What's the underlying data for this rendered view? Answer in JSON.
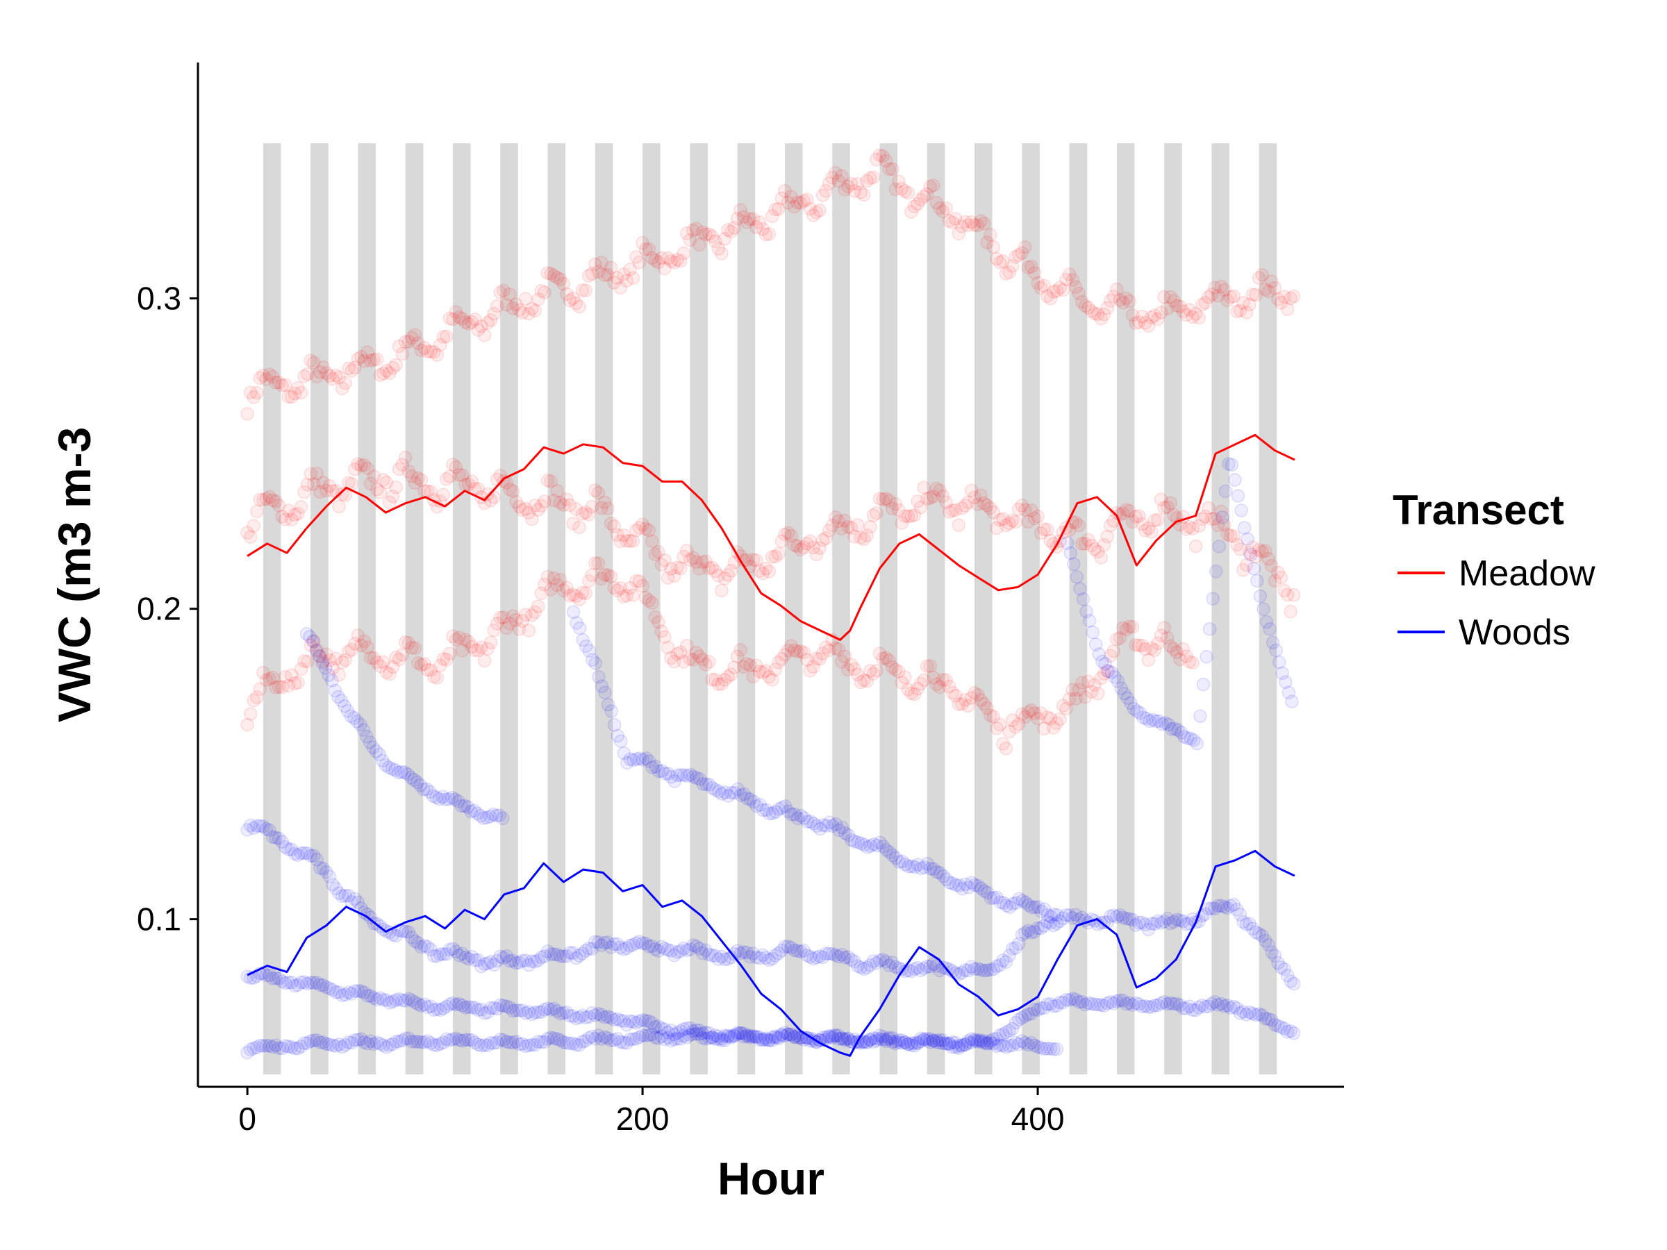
{
  "chart_data": {
    "type": "line",
    "xlabel": "Hour",
    "ylabel": "VWC (m3 m-3",
    "xlim": [
      -25,
      555
    ],
    "ylim": [
      0.046,
      0.376
    ],
    "xticks": [
      {
        "value": 0,
        "label": "0"
      },
      {
        "value": 200,
        "label": "200"
      },
      {
        "value": 400,
        "label": "400"
      }
    ],
    "yticks": [
      {
        "value": 0.1,
        "label": "0.1"
      },
      {
        "value": 0.2,
        "label": "0.2"
      },
      {
        "value": 0.3,
        "label": "0.3"
      }
    ],
    "night_bands": {
      "y_range": [
        0.05,
        0.35
      ],
      "x_ranges": [
        [
          8,
          17
        ],
        [
          32,
          41
        ],
        [
          56,
          65
        ],
        [
          80,
          89
        ],
        [
          104,
          113
        ],
        [
          128,
          137
        ],
        [
          152,
          161
        ],
        [
          176,
          185
        ],
        [
          200,
          209
        ],
        [
          224,
          233
        ],
        [
          248,
          257
        ],
        [
          272,
          281
        ],
        [
          296,
          305
        ],
        [
          320,
          329
        ],
        [
          344,
          353
        ],
        [
          368,
          377
        ],
        [
          392,
          401
        ],
        [
          416,
          425
        ],
        [
          440,
          449
        ],
        [
          464,
          473
        ],
        [
          488,
          497
        ],
        [
          512,
          521
        ]
      ],
      "color": "#d9d9d9"
    },
    "legend": {
      "title": "Transect",
      "position": "right",
      "entries": [
        {
          "label": "Meadow",
          "color": "#ff0000"
        },
        {
          "label": "Woods",
          "color": "#0000ff"
        }
      ]
    },
    "series": [
      {
        "name": "Meadow",
        "kind": "mean_line",
        "color": "#ff0000",
        "x": [
          0,
          10,
          20,
          30,
          40,
          50,
          60,
          70,
          80,
          90,
          100,
          110,
          120,
          130,
          140,
          150,
          160,
          170,
          180,
          190,
          200,
          210,
          220,
          230,
          240,
          250,
          260,
          270,
          280,
          290,
          300,
          305,
          310,
          320,
          330,
          340,
          350,
          360,
          370,
          380,
          390,
          400,
          410,
          420,
          430,
          440,
          450,
          460,
          470,
          480,
          490,
          500,
          510,
          520,
          530
        ],
        "y": [
          0.217,
          0.221,
          0.218,
          0.226,
          0.233,
          0.239,
          0.236,
          0.231,
          0.234,
          0.236,
          0.233,
          0.238,
          0.235,
          0.242,
          0.245,
          0.252,
          0.25,
          0.253,
          0.252,
          0.247,
          0.246,
          0.241,
          0.241,
          0.235,
          0.226,
          0.215,
          0.205,
          0.201,
          0.196,
          0.193,
          0.19,
          0.193,
          0.2,
          0.213,
          0.221,
          0.224,
          0.219,
          0.214,
          0.21,
          0.206,
          0.207,
          0.211,
          0.221,
          0.234,
          0.236,
          0.23,
          0.214,
          0.222,
          0.228,
          0.23,
          0.25,
          0.253,
          0.256,
          0.251,
          0.248
        ]
      },
      {
        "name": "Woods",
        "kind": "mean_line",
        "color": "#0000ff",
        "x": [
          0,
          10,
          20,
          30,
          40,
          50,
          60,
          70,
          80,
          90,
          100,
          110,
          120,
          130,
          140,
          150,
          160,
          170,
          180,
          190,
          200,
          210,
          220,
          230,
          240,
          250,
          260,
          270,
          280,
          290,
          300,
          305,
          310,
          320,
          330,
          340,
          350,
          360,
          370,
          380,
          390,
          400,
          410,
          420,
          430,
          440,
          450,
          460,
          470,
          480,
          490,
          500,
          510,
          520,
          530
        ],
        "y": [
          0.082,
          0.085,
          0.083,
          0.094,
          0.098,
          0.104,
          0.101,
          0.096,
          0.099,
          0.101,
          0.097,
          0.103,
          0.1,
          0.108,
          0.11,
          0.118,
          0.112,
          0.116,
          0.115,
          0.109,
          0.111,
          0.104,
          0.106,
          0.101,
          0.093,
          0.085,
          0.076,
          0.071,
          0.064,
          0.06,
          0.057,
          0.056,
          0.062,
          0.071,
          0.082,
          0.091,
          0.087,
          0.079,
          0.075,
          0.069,
          0.071,
          0.075,
          0.087,
          0.098,
          0.1,
          0.095,
          0.078,
          0.081,
          0.087,
          0.099,
          0.117,
          0.119,
          0.122,
          0.117,
          0.114
        ]
      }
    ],
    "point_traces": [
      {
        "transect": "Meadow",
        "color": "#ff0000",
        "x0": 0,
        "x1": 530,
        "base": [
          0.27,
          0.274,
          0.28,
          0.29,
          0.3,
          0.306,
          0.314,
          0.322,
          0.331,
          0.341,
          0.329,
          0.312,
          0.298,
          0.294,
          0.3,
          0.303
        ],
        "amp": 0.009
      },
      {
        "transect": "Meadow",
        "color": "#ff0000",
        "x0": 0,
        "x1": 530,
        "base": [
          0.228,
          0.238,
          0.242,
          0.24,
          0.236,
          0.232,
          0.215,
          0.212,
          0.222,
          0.23,
          0.235,
          0.229,
          0.222,
          0.231,
          0.226,
          0.205
        ],
        "amp": 0.01
      },
      {
        "transect": "Meadow",
        "color": "#ff0000",
        "x0": 0,
        "x1": 480,
        "base": [
          0.169,
          0.184,
          0.186,
          0.182,
          0.192,
          0.208,
          0.21,
          0.182,
          0.18,
          0.186,
          0.18,
          0.176,
          0.162,
          0.168,
          0.192,
          0.184
        ],
        "amp": 0.009
      },
      {
        "transect": "Woods",
        "color": "#0000ff",
        "x0": 30,
        "x1": 130,
        "base": [
          0.192,
          0.168,
          0.15,
          0.142,
          0.136,
          0.132
        ],
        "amp": 0.002
      },
      {
        "transect": "Woods",
        "color": "#0000ff",
        "x0": 165,
        "x1": 410,
        "base": [
          0.2,
          0.152,
          0.146,
          0.14,
          0.134,
          0.128,
          0.12,
          0.113,
          0.106,
          0.102
        ],
        "amp": 0.003
      },
      {
        "transect": "Woods",
        "color": "#0000ff",
        "x0": 415,
        "x1": 530,
        "base": [
          0.22,
          0.185,
          0.168,
          0.162,
          0.158,
          0.25,
          0.2,
          0.168
        ],
        "amp": 0.002
      },
      {
        "transect": "Woods",
        "color": "#0000ff",
        "x0": 0,
        "x1": 530,
        "base": [
          0.131,
          0.12,
          0.1,
          0.09,
          0.086,
          0.088,
          0.092,
          0.09,
          0.088,
          0.09,
          0.086,
          0.084,
          0.083,
          0.1,
          0.1,
          0.098,
          0.105,
          0.08
        ],
        "amp": 0.003
      },
      {
        "transect": "Woods",
        "color": "#0000ff",
        "x0": 0,
        "x1": 530,
        "base": [
          0.082,
          0.079,
          0.075,
          0.072,
          0.071,
          0.07,
          0.068,
          0.064,
          0.062,
          0.062,
          0.061,
          0.06,
          0.06,
          0.073,
          0.073,
          0.072,
          0.072,
          0.064
        ],
        "amp": 0.002
      },
      {
        "transect": "Woods",
        "color": "#0000ff",
        "x0": 0,
        "x1": 410,
        "base": [
          0.058,
          0.06,
          0.06,
          0.061,
          0.06,
          0.061,
          0.062,
          0.062,
          0.062,
          0.061,
          0.061,
          0.06,
          0.059
        ],
        "amp": 0.002
      }
    ]
  }
}
